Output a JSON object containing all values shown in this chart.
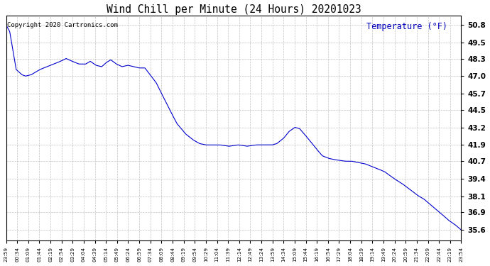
{
  "title": "Wind Chill per Minute (24 Hours) 20201023",
  "copyright_text": "Copyright 2020 Cartronics.com",
  "ylabel": "Temperature (°F)",
  "line_color": "#0000CC",
  "ylabel_color": "#0000BB",
  "copyright_color": "#000000",
  "title_color": "#000000",
  "background_color": "#ffffff",
  "grid_color": "#aaaaaa",
  "ylim": [
    34.8,
    51.5
  ],
  "yticks": [
    35.6,
    36.9,
    38.1,
    39.4,
    40.7,
    41.9,
    43.2,
    44.5,
    45.7,
    47.0,
    48.3,
    49.5,
    50.8
  ],
  "xtick_labels": [
    "23:59",
    "00:34",
    "01:09",
    "01:44",
    "02:19",
    "02:54",
    "03:29",
    "04:04",
    "04:39",
    "05:14",
    "05:49",
    "06:24",
    "06:59",
    "07:34",
    "08:09",
    "08:44",
    "09:19",
    "09:54",
    "10:29",
    "11:04",
    "11:39",
    "12:14",
    "12:49",
    "13:24",
    "13:59",
    "14:34",
    "15:09",
    "15:44",
    "16:19",
    "16:54",
    "17:29",
    "18:04",
    "18:39",
    "19:14",
    "19:49",
    "20:24",
    "20:59",
    "21:34",
    "22:09",
    "22:44",
    "23:19",
    "23:54"
  ],
  "num_points": 1441
}
